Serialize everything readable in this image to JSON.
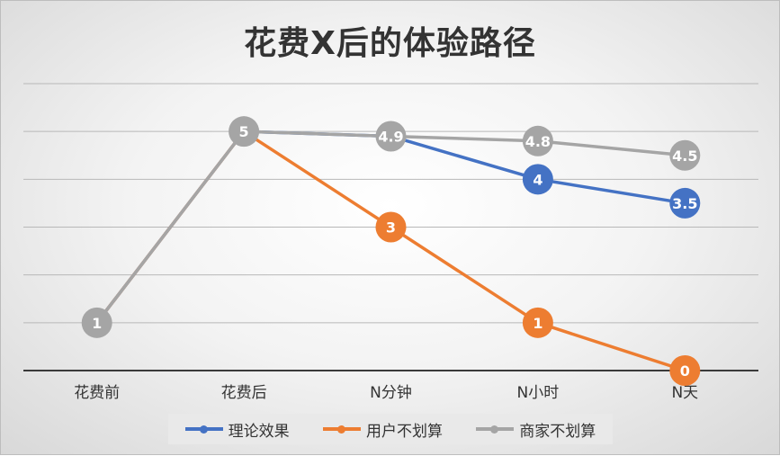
{
  "chart_data": {
    "type": "line",
    "title": "花费X后的体验路径",
    "categories": [
      "花费前",
      "花费后",
      "N分钟",
      "N小时",
      "N天"
    ],
    "ylim": [
      0,
      6
    ],
    "grid": true,
    "legend_position": "bottom",
    "series": [
      {
        "name": "理论效果",
        "color": "#4472C4",
        "values": [
          1,
          5,
          4.9,
          4,
          3.5
        ],
        "labels": [
          null,
          null,
          null,
          "4",
          "3.5"
        ]
      },
      {
        "name": "用户不划算",
        "color": "#ED7D31",
        "values": [
          1,
          5,
          3,
          1,
          0
        ],
        "labels": [
          null,
          null,
          "3",
          "1",
          "0"
        ]
      },
      {
        "name": "商家不划算",
        "color": "#A5A5A5",
        "values": [
          1,
          5,
          4.9,
          4.8,
          4.5
        ],
        "labels": [
          "1",
          "5",
          "4.9",
          "4.8",
          "4.5"
        ]
      }
    ]
  }
}
